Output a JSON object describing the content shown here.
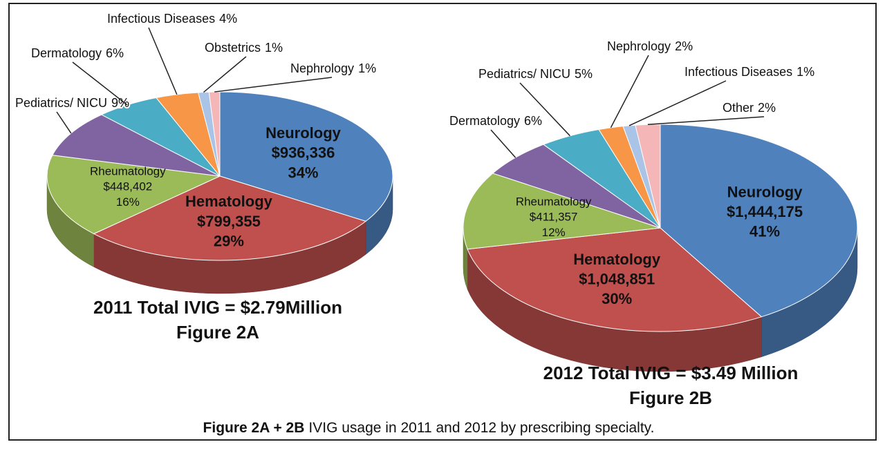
{
  "chart_data": [
    {
      "type": "pie",
      "title": "2011 Total IVIG = $2.79Million",
      "subtitle": "Figure 2A",
      "categories": [
        "Neurology",
        "Hematology",
        "Rheumatology",
        "Pediatrics/ NICU",
        "Dermatology",
        "Infectious Diseases",
        "Obstetrics",
        "Nephrology"
      ],
      "values": [
        34,
        29,
        16,
        9,
        6,
        4,
        1,
        1
      ],
      "value_labels": [
        "34%",
        "29%",
        "16%",
        "9%",
        "6%",
        "4%",
        "1%",
        "1%"
      ],
      "amount_labels": [
        "$936,336",
        "$799,355",
        "$448,402",
        null,
        null,
        null,
        null,
        null
      ],
      "colors": [
        "#4f81bd",
        "#c0504d",
        "#9bbb59",
        "#8064a2",
        "#4bacc6",
        "#f79646",
        "#a9c4e6",
        "#f4b6b6"
      ]
    },
    {
      "type": "pie",
      "title": "2012 Total IVIG = $3.49 Million",
      "subtitle": "Figure 2B",
      "categories": [
        "Neurology",
        "Hematology",
        "Rheumatology",
        "Dermatology",
        "Pediatrics/ NICU",
        "Nephrology",
        "Infectious Diseases",
        "Other"
      ],
      "values": [
        41,
        30,
        12,
        6,
        5,
        2,
        1,
        2
      ],
      "value_labels": [
        "41%",
        "30%",
        "12%",
        "6%",
        "5%",
        "2%",
        "1%",
        "2%"
      ],
      "amount_labels": [
        "$1,444,175",
        "$1,048,851",
        "$411,357",
        null,
        null,
        null,
        null,
        null
      ],
      "colors": [
        "#4f81bd",
        "#c0504d",
        "#9bbb59",
        "#8064a2",
        "#4bacc6",
        "#f79646",
        "#a9c4e6",
        "#f4b6b6"
      ]
    }
  ],
  "caption": {
    "bold": "Figure 2A + 2B",
    "text": "IVIG usage in 2011 and 2012 by prescribing specialty."
  }
}
